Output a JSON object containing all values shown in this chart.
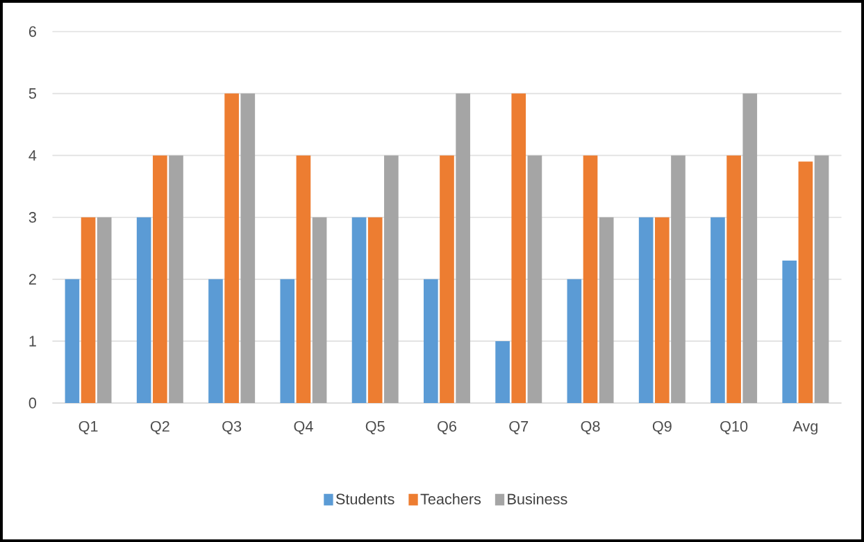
{
  "chart_data": {
    "type": "bar",
    "categories": [
      "Q1",
      "Q2",
      "Q3",
      "Q4",
      "Q5",
      "Q6",
      "Q7",
      "Q8",
      "Q9",
      "Q10",
      "Avg"
    ],
    "series": [
      {
        "name": "Students",
        "color": "#5b9bd5",
        "values": [
          2,
          3,
          2,
          2,
          3,
          2,
          1,
          2,
          3,
          3,
          2.3
        ]
      },
      {
        "name": "Teachers",
        "color": "#ed7d31",
        "values": [
          3,
          4,
          5,
          4,
          3,
          4,
          5,
          4,
          3,
          4,
          3.9
        ]
      },
      {
        "name": "Business",
        "color": "#a5a5a5",
        "values": [
          3,
          4,
          5,
          3,
          4,
          5,
          4,
          3,
          4,
          5,
          4
        ]
      }
    ],
    "ylim": [
      0,
      6
    ],
    "yticks": [
      0,
      1,
      2,
      3,
      4,
      5,
      6
    ],
    "grid": "y",
    "legend": "bottom"
  }
}
